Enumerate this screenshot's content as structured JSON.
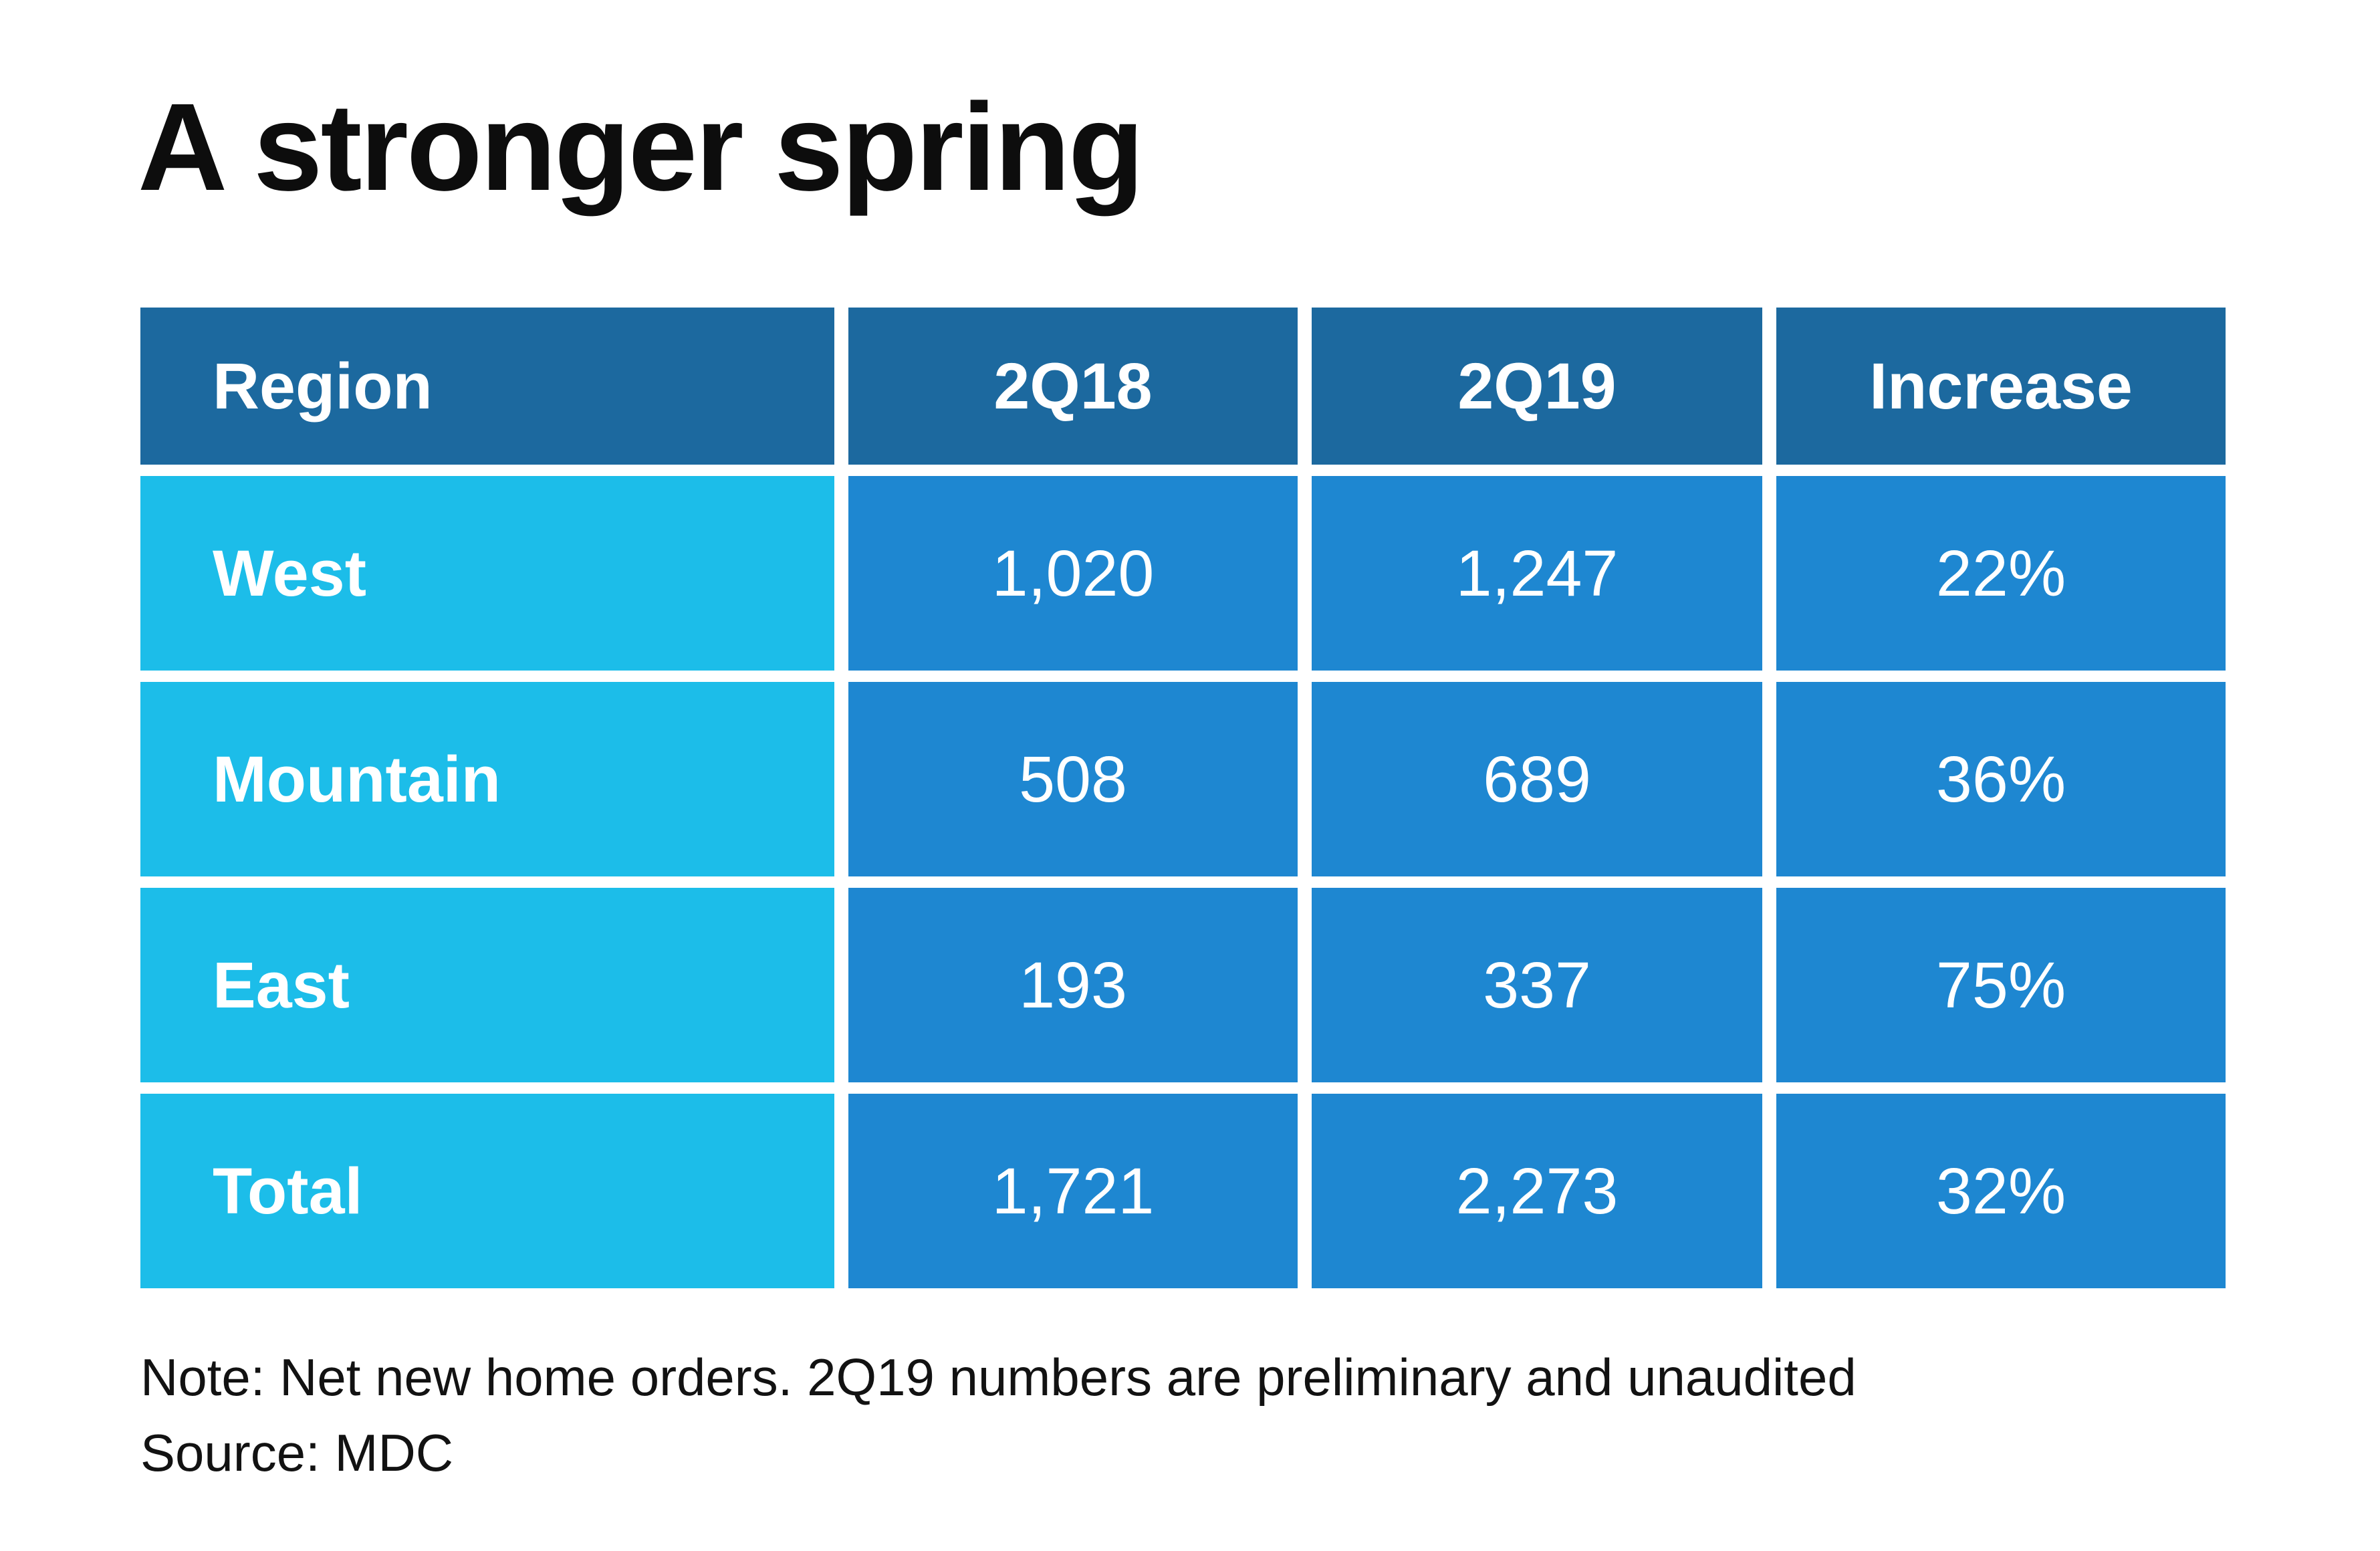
{
  "chart_data": {
    "type": "table",
    "title": "A stronger spring",
    "columns": [
      "Region",
      "2Q18",
      "2Q19",
      "Increase"
    ],
    "rows": [
      [
        "West",
        "1,020",
        "1,247",
        "22%"
      ],
      [
        "Mountain",
        "508",
        "689",
        "36%"
      ],
      [
        "East",
        "193",
        "337",
        "75%"
      ],
      [
        "Total",
        "1,721",
        "2,273",
        "32%"
      ]
    ],
    "categories": [
      "West",
      "Mountain",
      "East",
      "Total"
    ],
    "series": [
      {
        "name": "2Q18",
        "values": [
          1020,
          508,
          193,
          1721
        ]
      },
      {
        "name": "2Q19",
        "values": [
          1247,
          689,
          337,
          2273
        ]
      },
      {
        "name": "Increase",
        "values": [
          "22%",
          "36%",
          "75%",
          "32%"
        ]
      }
    ],
    "note": "Note: Net new home orders. 2Q19 numbers are preliminary and unaudited",
    "source": "Source: MDC"
  },
  "colors": {
    "header_bg": "#1C699F",
    "row_label_bg": "#1CBDE9",
    "value_bg": "#1E87D1",
    "cell_text": "#FFFFFF",
    "title_text": "#0D0D0D",
    "background": "#FFFFFF"
  }
}
